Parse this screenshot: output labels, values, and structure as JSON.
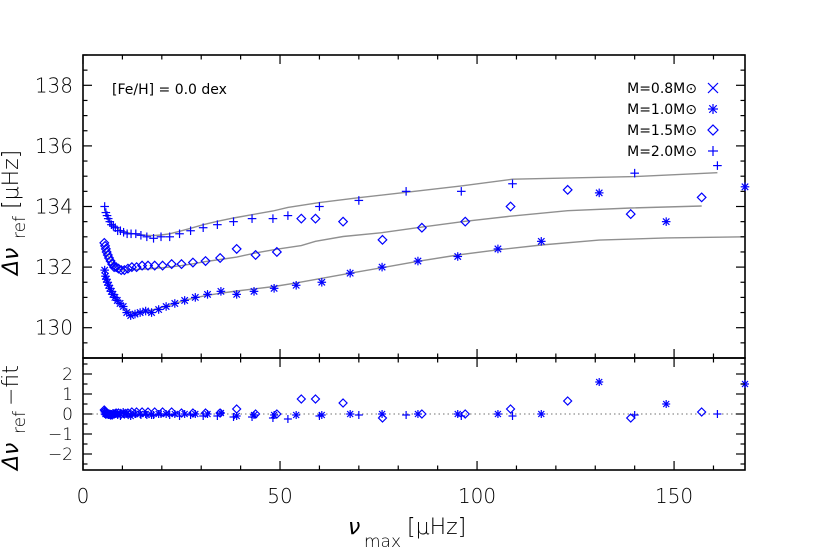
{
  "chart_data": [
    {
      "type": "scatter",
      "panel": "top",
      "annotation": "[Fe/H] = 0.0 dex",
      "xlim": [
        0,
        168
      ],
      "ylim": [
        129.0,
        139.0
      ],
      "yticks": [
        130,
        132,
        134,
        136,
        138
      ],
      "ylabel": "Δν_ref [μHz]",
      "marker_color": "#0000ff",
      "fit_color": "#909090",
      "legend_position": "top-right",
      "series": [
        {
          "name": "M=0.8M⊙",
          "marker": "x",
          "x": [],
          "y": []
        },
        {
          "name": "M=1.0M⊙",
          "marker": "asterisk",
          "x": [
            5.5,
            5.7,
            5.9,
            6.2,
            6.5,
            6.8,
            7.2,
            7.6,
            8.1,
            8.7,
            9.4,
            10.2,
            11.1,
            12.1,
            13.2,
            14.5,
            15.9,
            17.4,
            19.2,
            21.1,
            23.3,
            25.8,
            28.5,
            31.6,
            35.0,
            39.0,
            43.4,
            48.5,
            54.1,
            60.6,
            67.8,
            75.9,
            85.0,
            95.1,
            105.3,
            116.3,
            131.0,
            148.0,
            168.0
          ],
          "y": [
            131.9,
            131.7,
            131.6,
            131.5,
            131.4,
            131.3,
            131.2,
            131.1,
            131.0,
            130.9,
            130.8,
            130.7,
            130.5,
            130.4,
            130.45,
            130.5,
            130.55,
            130.5,
            130.6,
            130.7,
            130.8,
            130.9,
            131.0,
            131.1,
            131.2,
            131.1,
            131.2,
            131.3,
            131.4,
            131.5,
            131.8,
            132.0,
            132.2,
            132.35,
            132.6,
            132.85,
            134.45,
            133.5,
            134.65
          ],
          "residuals": [
            0.1,
            0.0,
            0.0,
            0.0,
            -0.05,
            0.0,
            0.0,
            0.05,
            0.0,
            0.0,
            0.0,
            0.1,
            0.0,
            -0.1,
            0.0,
            0.0,
            0.0,
            -0.05,
            0.0,
            0.0,
            0.0,
            0.0,
            0.0,
            0.0,
            0.05,
            -0.1,
            -0.05,
            -0.05,
            -0.05,
            -0.05,
            0.0,
            0.0,
            0.0,
            0.0,
            0.0,
            0.0,
            1.6,
            0.5,
            1.5
          ]
        },
        {
          "name": "M=1.5M⊙",
          "marker": "diamond",
          "x": [
            5.4,
            5.6,
            5.8,
            6.0,
            6.3,
            6.6,
            7.0,
            7.4,
            7.9,
            8.4,
            9.0,
            9.7,
            10.5,
            11.4,
            12.4,
            13.6,
            15.0,
            16.5,
            18.2,
            20.2,
            22.5,
            25.0,
            27.9,
            31.1,
            34.8,
            39.0,
            43.8,
            49.2,
            55.4,
            59.0,
            66.0,
            76.0,
            86.0,
            97.0,
            108.5,
            123.0,
            139.0,
            157.0
          ],
          "y": [
            132.8,
            132.7,
            132.6,
            132.5,
            132.4,
            132.3,
            132.2,
            132.1,
            132.0,
            132.0,
            131.95,
            131.9,
            131.9,
            131.95,
            132.0,
            132.0,
            132.05,
            132.05,
            132.05,
            132.05,
            132.1,
            132.1,
            132.15,
            132.2,
            132.3,
            132.6,
            132.4,
            132.5,
            133.6,
            133.6,
            133.5,
            132.9,
            133.3,
            133.5,
            134.0,
            134.55,
            133.75,
            134.3
          ],
          "residuals": [
            0.2,
            0.15,
            0.1,
            0.05,
            0.0,
            0.0,
            -0.05,
            -0.05,
            0.0,
            0.05,
            0.05,
            0.0,
            0.0,
            0.05,
            0.1,
            0.1,
            0.1,
            0.1,
            0.1,
            0.1,
            0.1,
            0.05,
            0.05,
            0.05,
            0.05,
            0.25,
            0.0,
            0.0,
            0.75,
            0.75,
            0.55,
            -0.2,
            0.0,
            0.0,
            0.25,
            0.65,
            -0.2,
            0.1
          ]
        },
        {
          "name": "M=2.0M⊙",
          "marker": "plus",
          "x": [
            5.5,
            5.8,
            6.1,
            6.4,
            6.8,
            7.2,
            7.7,
            8.2,
            8.8,
            9.5,
            10.3,
            11.2,
            12.2,
            13.4,
            14.7,
            16.2,
            17.9,
            19.8,
            22.0,
            24.5,
            27.3,
            30.5,
            34.1,
            38.2,
            42.9,
            48.2,
            52.0,
            60.0,
            70.0,
            82.0,
            96.0,
            109.0,
            140.0,
            161.0
          ],
          "y": [
            134.0,
            133.8,
            133.7,
            133.6,
            133.5,
            133.4,
            133.35,
            133.3,
            133.2,
            133.2,
            133.15,
            133.1,
            133.1,
            133.1,
            133.05,
            133.0,
            132.95,
            133.0,
            133.0,
            133.1,
            133.2,
            133.3,
            133.4,
            133.5,
            133.6,
            133.6,
            133.7,
            134.0,
            134.2,
            134.5,
            134.5,
            134.75,
            135.1,
            135.35
          ],
          "residuals": [
            0.0,
            -0.05,
            0.0,
            0.0,
            0.0,
            -0.05,
            0.0,
            0.0,
            -0.05,
            -0.1,
            0.0,
            0.0,
            0.0,
            0.0,
            -0.05,
            -0.05,
            -0.05,
            0.0,
            -0.05,
            -0.1,
            -0.05,
            -0.1,
            -0.1,
            -0.15,
            -0.15,
            -0.2,
            -0.25,
            -0.1,
            -0.05,
            -0.05,
            -0.1,
            -0.1,
            -0.05,
            0.0
          ]
        }
      ]
    },
    {
      "type": "scatter",
      "panel": "bottom",
      "xlim": [
        0,
        168
      ],
      "ylim": [
        -2.8,
        2.8
      ],
      "yticks": [
        -2,
        -1,
        0,
        1,
        2
      ],
      "xticks": [
        0,
        50,
        100,
        150
      ],
      "ylabel": "Δν_ref −fit",
      "xlabel": "ν_max [μHz]",
      "reference_line": 0
    }
  ],
  "text": {
    "annotation": "[Fe/H] = 0.0 dex",
    "legend": [
      "M=0.8M⊙",
      "M=1.0M⊙",
      "M=1.5M⊙",
      "M=2.0M⊙"
    ],
    "top_ylabel_greek": "Δν",
    "top_ylabel_sub": "ref",
    "top_ylabel_units": "[μHz]",
    "bottom_ylabel_greek": "Δν",
    "bottom_ylabel_sub": "ref",
    "bottom_ylabel_suffix": "−fit",
    "xlabel_greek": "ν",
    "xlabel_sub": "max",
    "xlabel_units": "[μHz]"
  }
}
